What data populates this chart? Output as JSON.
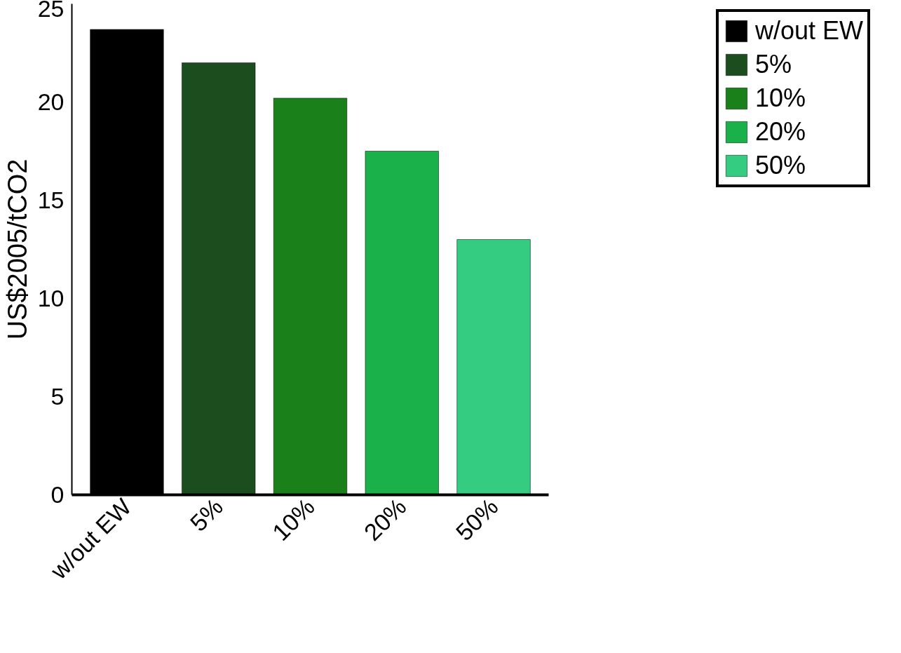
{
  "chart_data": {
    "type": "bar",
    "ylabel": "US$2005/tCO2",
    "stacked": true,
    "categories": [
      "w/out EW",
      "5%",
      "10%",
      "20%",
      "50%"
    ],
    "series": [
      {
        "name": "w/out EW",
        "color": "#000000",
        "values": [
          23.7,
          null,
          null,
          null,
          null
        ]
      },
      {
        "name": "5%",
        "color": "#1b4d1e",
        "values": [
          null,
          22.0,
          null,
          null,
          null
        ]
      },
      {
        "name": "10%",
        "color": "#1a801a",
        "values": [
          null,
          null,
          20.2,
          null,
          null
        ]
      },
      {
        "name": "20%",
        "color": "#1ab04a",
        "values": [
          null,
          null,
          null,
          17.5,
          null
        ]
      },
      {
        "name": "50%",
        "color": "#33cc80",
        "values": [
          null,
          null,
          null,
          null,
          13.0
        ]
      }
    ],
    "ylim": [
      0,
      25
    ],
    "yticks": [
      0,
      5,
      10,
      15,
      20,
      25
    ],
    "grid": false,
    "legend": "top right"
  }
}
